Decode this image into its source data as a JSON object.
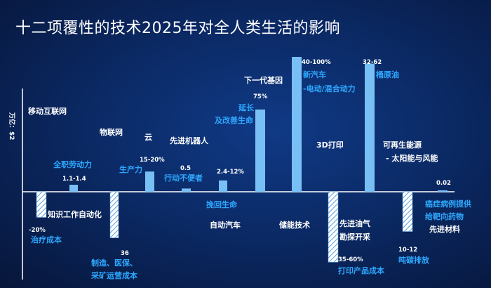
{
  "title": "十二项覆性的技术2025年对全人类生活的影响",
  "chart_data": {
    "type": "bar",
    "title": "十二项覆性的技术2025年对全人类生活的影响",
    "ylabel": "万亿：$2",
    "colors": {
      "bar": "#78bff5",
      "hatched_fill": "#ffffff",
      "hatch": "#5a9fdc",
      "text_white": "#ffffff",
      "text_blue": "#2ea8ff"
    },
    "technologies": [
      {
        "name": "移动互联网",
        "sign": "neg",
        "upper": 20,
        "lower": 10.8,
        "upper_label": "",
        "lower_label": "-20%",
        "sub_label": "治疗成本"
      },
      {
        "name": "知识工作自动化",
        "sign": "pos",
        "upper": 5.2,
        "lower": 1.1,
        "upper_label": "1.1-1.4",
        "sub_label": "全职劳动力"
      },
      {
        "name": "物联网",
        "sign": "neg",
        "upper": 36,
        "lower": 36,
        "lower_label": "36",
        "sub_label": "制造、医保、采矿运营成本"
      },
      {
        "name": "云",
        "sign": "pos",
        "upper": 15,
        "lower": 15,
        "upper_label": "15-20%",
        "sub_label": "生产力"
      },
      {
        "name": "先进机器人",
        "sign": "pos",
        "upper": 2.4,
        "lower": 2.4,
        "upper_label": "0.5",
        "sub_label": "行动不便者"
      },
      {
        "name": "自动汽车",
        "sign": "pos",
        "upper": 8.4,
        "lower": 8.4,
        "upper_label": "2.4-12%",
        "sub_label": "挽回生命"
      },
      {
        "name": "下一代基因",
        "sign": "pos",
        "upper": 61,
        "lower": 61,
        "upper_label": "75%",
        "sub_label": "延长及改善生命"
      },
      {
        "name": "储能技术",
        "sign": "pos",
        "upper": 100,
        "lower": 100,
        "upper_label": "40-100%",
        "sub_label": "新汽车-电动/混合动力"
      },
      {
        "name": "3D打印",
        "sign": "neg",
        "upper": 55,
        "lower": 55,
        "lower_label": "35-60%",
        "sub_label": "打印产品成本"
      },
      {
        "name": "先进油气勘探开采",
        "sign": "pos",
        "upper": 95,
        "lower": 95,
        "upper_label": "32-62",
        "sub_label": "桶原油"
      },
      {
        "name": "可再生能源",
        "sign": "neg",
        "upper": 31,
        "lower": 31,
        "lower_label": "10-12",
        "sub_label": "吨碳排放",
        "extra_label": "可再生能源- 太阳能与风能"
      },
      {
        "name": "先进材料",
        "sign": "pos",
        "upper": 1,
        "lower": 1,
        "upper_label": "0.02",
        "sub_label": "癌症病例提供给靶向药物"
      }
    ],
    "text_labels": {
      "mobile": "移动互联网",
      "knowledge": "知识工作自动化",
      "iot": "物联网",
      "cloud": "云",
      "robotics": "先进机器人",
      "autos": "自动汽车",
      "genomics": "下一代基因",
      "storage": "储能技术",
      "printing": "3D打印",
      "oilgas_1": "先进油气",
      "oilgas_2": "勘探开采",
      "renew_1": "可再生能源",
      "renew_2": "- 太阳能与风能",
      "materials": "先进材料",
      "sub_treat": "治疗成本",
      "sub_labor": "全职劳动力",
      "sub_mfg_1": "制造、医保、",
      "sub_mfg_2": "采矿运营成本",
      "sub_prod": "生产力",
      "sub_mobility": "行动不便者",
      "sub_lives": "挽回生命",
      "sub_gene_1": "延长",
      "sub_gene_2": "及改善生命",
      "sub_car_1": "新汽车",
      "sub_car_2": "-电动/混合动力",
      "sub_print": "打印产品成本",
      "sub_oil": "桶原油",
      "sub_carbon": "吨碳排放",
      "sub_cancer_1": "癌症病例提供",
      "sub_cancer_2": "给靶向药物",
      "v_neg20": "-20%",
      "v_1114": "1.1-1.4",
      "v_36": "36",
      "v_1520": "15-20%",
      "v_05": "0.5",
      "v_2412": "2.4-12%",
      "v_75": "75%",
      "v_40100": "40-100%",
      "v_3560": "35-60%",
      "v_3262": "32-62",
      "v_1012": "10-12",
      "v_002": "0.02",
      "axis": "万亿：$2"
    }
  }
}
